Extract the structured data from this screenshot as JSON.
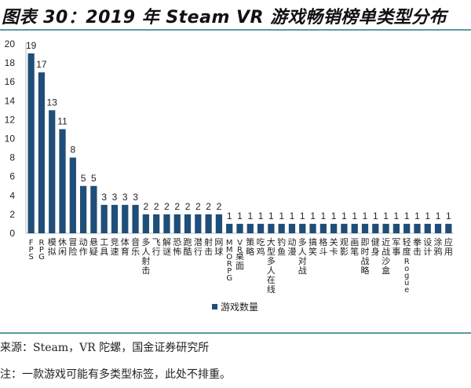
{
  "title": "图表 30：2019 年 Steam VR 游戏畅销榜单类型分布",
  "source": "来源：Steam，VR 陀螺，国金证券研究所",
  "note": "注：一款游戏可能有多类型标签，此处不排重。",
  "colors": {
    "bar": "#1f4e79",
    "rule": "#5a9a9e",
    "axis": "#bfbfbf"
  },
  "chart_data": {
    "type": "bar",
    "title": "2019 年 Steam VR 游戏畅销榜单类型分布",
    "xlabel": "",
    "ylabel": "",
    "ylim": [
      0,
      20
    ],
    "yticks": [
      0,
      2,
      4,
      6,
      8,
      10,
      12,
      14,
      16,
      18,
      20
    ],
    "grid": false,
    "legend": "bottom",
    "categories": [
      "FPS",
      "RPG",
      "模拟",
      "休闲",
      "冒险",
      "动作",
      "悬疑",
      "工具",
      "竞速",
      "体育",
      "音乐",
      "多人射击",
      "飞行",
      "解谜",
      "恐怖",
      "跑酷",
      "潜行",
      "射击",
      "网球",
      "MMORPG",
      "VR桌面",
      "策略",
      "吃鸡",
      "大型多人在线",
      "钓鱼",
      "动漫",
      "多人对战",
      "搞笑",
      "格斗",
      "关卡",
      "观影",
      "画笔",
      "即时战略",
      "健身",
      "近战沙盒",
      "军事",
      "轻度Rogue",
      "拳击",
      "设计",
      "涂鸦",
      "应用"
    ],
    "series": [
      {
        "name": "游戏数量",
        "values": [
          19,
          17,
          13,
          11,
          8,
          5,
          5,
          3,
          3,
          3,
          3,
          2,
          2,
          2,
          2,
          2,
          2,
          2,
          2,
          1,
          1,
          1,
          1,
          1,
          1,
          1,
          1,
          1,
          1,
          1,
          1,
          1,
          1,
          1,
          1,
          1,
          1,
          1,
          1,
          1,
          1
        ]
      }
    ]
  }
}
